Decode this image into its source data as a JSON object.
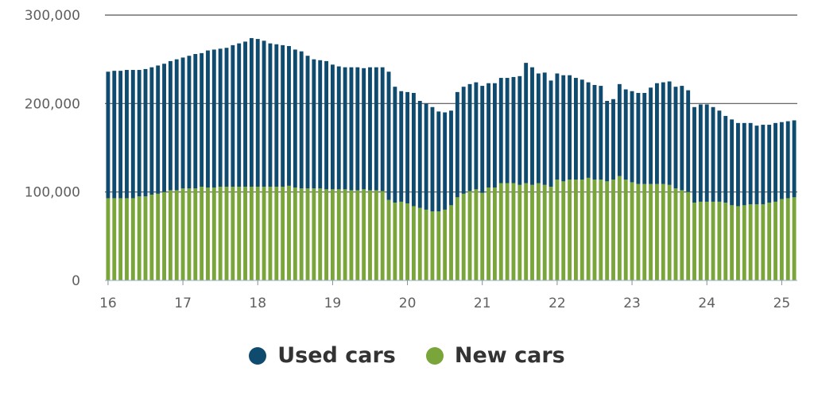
{
  "chart_data": {
    "type": "bar",
    "stacked": true,
    "title": "",
    "xlabel": "",
    "ylabel": "",
    "ylim": [
      0,
      300000
    ],
    "yticks": [
      0,
      100000,
      200000,
      300000
    ],
    "ytick_labels": [
      "0",
      "100,000",
      "200,000",
      "300,000"
    ],
    "xtick_labels": [
      "16",
      "17",
      "18",
      "19",
      "20",
      "21",
      "22",
      "23",
      "24",
      "25"
    ],
    "months_per_tick": 12,
    "legend_position": "bottom-center",
    "series": [
      {
        "name": "New cars",
        "color": "#7aa53a",
        "values": [
          93000,
          93000,
          93000,
          93000,
          93000,
          95000,
          95000,
          97000,
          98000,
          100000,
          102000,
          102000,
          104000,
          104000,
          104000,
          106000,
          105000,
          105000,
          106000,
          106000,
          106000,
          106000,
          106000,
          106000,
          106000,
          106000,
          106000,
          106000,
          106000,
          107000,
          105000,
          104000,
          104000,
          104000,
          104000,
          103000,
          103000,
          103000,
          103000,
          102000,
          102000,
          103000,
          102000,
          102000,
          101000,
          91000,
          88000,
          89000,
          87000,
          84000,
          82000,
          80000,
          78000,
          78000,
          80000,
          85000,
          94000,
          98000,
          101000,
          103000,
          99000,
          105000,
          105000,
          110000,
          110000,
          110000,
          108000,
          110000,
          108000,
          110000,
          108000,
          106000,
          114000,
          112000,
          114000,
          114000,
          114000,
          116000,
          114000,
          114000,
          112000,
          114000,
          118000,
          114000,
          111000,
          109000,
          109000,
          109000,
          109000,
          109000,
          108000,
          104000,
          102000,
          100000,
          88000,
          89000,
          89000,
          89000,
          89000,
          88000,
          85000,
          84000,
          85000,
          86000,
          86000,
          86000,
          88000,
          89000,
          92000,
          93000,
          94000
        ]
      },
      {
        "name": "Used cars",
        "color": "#0f4b6e",
        "values": [
          143000,
          144000,
          144000,
          145000,
          145000,
          143000,
          144000,
          144000,
          145000,
          145000,
          146000,
          148000,
          148000,
          150000,
          152000,
          151000,
          155000,
          156000,
          156000,
          157000,
          160000,
          162000,
          164000,
          168000,
          167000,
          165000,
          162000,
          161000,
          160000,
          158000,
          156000,
          155000,
          150000,
          146000,
          145000,
          145000,
          141000,
          139000,
          138000,
          139000,
          139000,
          137000,
          139000,
          139000,
          140000,
          145000,
          131000,
          125000,
          126000,
          128000,
          121000,
          120000,
          118000,
          113000,
          110000,
          107000,
          119000,
          121000,
          121000,
          121000,
          121000,
          118000,
          118000,
          119000,
          119000,
          120000,
          123000,
          136000,
          133000,
          124000,
          127000,
          120000,
          120000,
          120000,
          118000,
          115000,
          113000,
          108000,
          107000,
          106000,
          91000,
          91000,
          104000,
          102000,
          103000,
          103000,
          103000,
          109000,
          114000,
          115000,
          117000,
          115000,
          118000,
          115000,
          108000,
          110000,
          110000,
          107000,
          103000,
          98000,
          97000,
          94000,
          93000,
          92000,
          89000,
          90000,
          88000,
          89000,
          87000,
          87000,
          87000
        ]
      }
    ]
  },
  "legend": {
    "items": [
      {
        "label": "Used cars",
        "color": "#0f4b6e"
      },
      {
        "label": "New cars",
        "color": "#7aa53a"
      }
    ]
  }
}
